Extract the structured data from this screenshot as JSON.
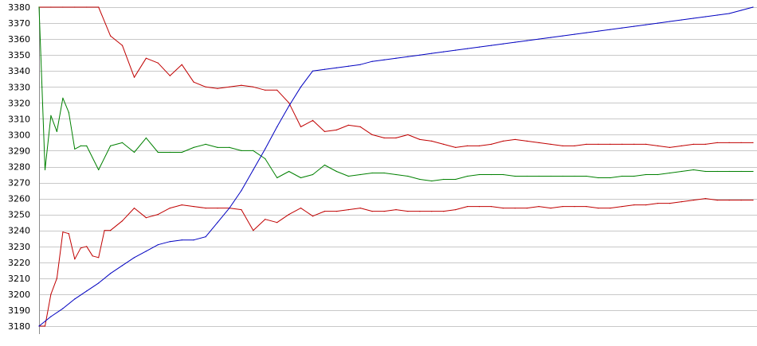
{
  "chart_data": {
    "type": "line",
    "title": "",
    "xlabel": "",
    "ylabel": "",
    "ylim": [
      3180,
      3380
    ],
    "yticks": [
      3180,
      3190,
      3200,
      3210,
      3220,
      3230,
      3240,
      3250,
      3260,
      3270,
      3280,
      3290,
      3300,
      3310,
      3320,
      3330,
      3340,
      3350,
      3360,
      3370,
      3380
    ],
    "xlim": [
      0,
      120
    ],
    "grid": true,
    "legend": "none",
    "series": [
      {
        "color": "#c00000",
        "x": [
          0,
          2,
          4,
          6,
          8,
          10,
          12,
          14,
          16,
          18,
          20,
          22,
          24,
          26,
          28,
          30,
          32,
          34,
          36,
          38,
          40,
          42,
          44,
          46,
          48,
          50,
          52,
          54,
          56,
          58,
          60,
          62,
          64,
          66,
          68,
          70,
          72,
          74,
          76,
          78,
          80,
          82,
          84,
          86,
          88,
          90,
          92,
          94,
          96,
          98,
          100,
          102,
          104,
          106,
          108,
          110,
          112,
          114,
          116,
          118,
          120
        ],
        "values": [
          3380,
          3380,
          3380,
          3380,
          3380,
          3380,
          3362,
          3356,
          3336,
          3348,
          3345,
          3337,
          3344,
          3333,
          3330,
          3329,
          3330,
          3331,
          3330,
          3328,
          3328,
          3320,
          3305,
          3309,
          3302,
          3303,
          3306,
          3305,
          3300,
          3298,
          3298,
          3300,
          3297,
          3296,
          3294,
          3292,
          3293,
          3293,
          3294,
          3296,
          3297,
          3296,
          3295,
          3294,
          3293,
          3293,
          3294,
          3294,
          3294,
          3294,
          3294,
          3294,
          3293,
          3292,
          3293,
          3294,
          3294,
          3295,
          3295,
          3295,
          3295
        ]
      },
      {
        "color": "#008000",
        "x": [
          0,
          0.5,
          1,
          2,
          3,
          4,
          5,
          6,
          7,
          8,
          10,
          12,
          14,
          16,
          18,
          20,
          22,
          24,
          26,
          28,
          30,
          32,
          34,
          36,
          38,
          40,
          42,
          44,
          46,
          48,
          50,
          52,
          54,
          56,
          58,
          60,
          62,
          64,
          66,
          68,
          70,
          72,
          74,
          76,
          78,
          80,
          82,
          84,
          86,
          88,
          90,
          92,
          94,
          96,
          98,
          100,
          102,
          104,
          106,
          108,
          110,
          112,
          114,
          116,
          118,
          120
        ],
        "values": [
          3380,
          3330,
          3278,
          3312,
          3302,
          3323,
          3314,
          3291,
          3293,
          3293,
          3278,
          3293,
          3295,
          3289,
          3298,
          3289,
          3289,
          3289,
          3292,
          3294,
          3292,
          3292,
          3290,
          3290,
          3285,
          3273,
          3277,
          3273,
          3275,
          3281,
          3277,
          3274,
          3275,
          3276,
          3276,
          3275,
          3274,
          3272,
          3271,
          3272,
          3272,
          3274,
          3275,
          3275,
          3275,
          3274,
          3274,
          3274,
          3274,
          3274,
          3274,
          3274,
          3273,
          3273,
          3274,
          3274,
          3275,
          3275,
          3276,
          3277,
          3278,
          3277,
          3277,
          3277,
          3277,
          3277
        ]
      },
      {
        "color": "#c00000",
        "x": [
          0,
          1,
          2,
          3,
          4,
          5,
          6,
          7,
          8,
          9,
          10,
          11,
          12,
          14,
          16,
          18,
          20,
          22,
          24,
          26,
          28,
          30,
          32,
          34,
          36,
          38,
          40,
          42,
          44,
          46,
          48,
          50,
          52,
          54,
          56,
          58,
          60,
          62,
          64,
          66,
          68,
          70,
          72,
          74,
          76,
          78,
          80,
          82,
          84,
          86,
          88,
          90,
          92,
          94,
          96,
          98,
          100,
          102,
          104,
          106,
          108,
          110,
          112,
          114,
          116,
          118,
          120
        ],
        "values": [
          3180,
          3180,
          3200,
          3210,
          3239,
          3238,
          3222,
          3229,
          3230,
          3224,
          3223,
          3240,
          3240,
          3246,
          3254,
          3248,
          3250,
          3254,
          3256,
          3255,
          3254,
          3254,
          3254,
          3253,
          3240,
          3247,
          3245,
          3250,
          3254,
          3249,
          3252,
          3252,
          3253,
          3254,
          3252,
          3252,
          3253,
          3252,
          3252,
          3252,
          3252,
          3253,
          3255,
          3255,
          3255,
          3254,
          3254,
          3254,
          3255,
          3254,
          3255,
          3255,
          3255,
          3254,
          3254,
          3255,
          3256,
          3256,
          3257,
          3257,
          3258,
          3259,
          3260,
          3259,
          3259,
          3259,
          3259
        ]
      },
      {
        "color": "#0000c0",
        "x": [
          0,
          2,
          4,
          6,
          8,
          10,
          12,
          14,
          16,
          18,
          20,
          22,
          24,
          26,
          28,
          30,
          32,
          34,
          36,
          38,
          40,
          42,
          44,
          46,
          48,
          50,
          52,
          54,
          56,
          58,
          60,
          62,
          64,
          66,
          68,
          70,
          72,
          74,
          76,
          78,
          80,
          82,
          84,
          86,
          88,
          90,
          92,
          94,
          96,
          98,
          100,
          102,
          104,
          106,
          108,
          110,
          112,
          114,
          116,
          118,
          120
        ],
        "values": [
          3180,
          3186,
          3191,
          3197,
          3202,
          3207,
          3213,
          3218,
          3223,
          3227,
          3231,
          3233,
          3234,
          3234,
          3236,
          3245,
          3254,
          3265,
          3278,
          3291,
          3305,
          3318,
          3330,
          3340,
          3341,
          3342,
          3343,
          3344,
          3346,
          3347,
          3348,
          3349,
          3350,
          3351,
          3352,
          3353,
          3354,
          3355,
          3356,
          3357,
          3358,
          3359,
          3360,
          3361,
          3362,
          3363,
          3364,
          3365,
          3366,
          3367,
          3368,
          3369,
          3370,
          3371,
          3372,
          3373,
          3374,
          3375,
          3376,
          3378,
          3380
        ]
      }
    ]
  }
}
